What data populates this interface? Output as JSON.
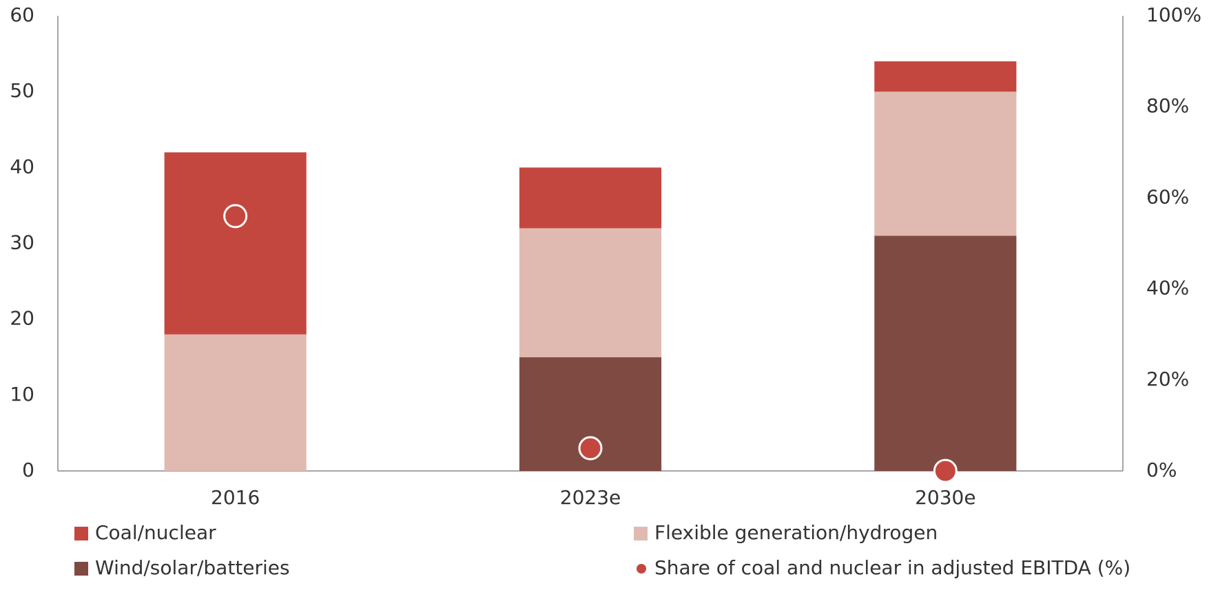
{
  "chart_data": {
    "type": "bar",
    "categories": [
      "2016",
      "2023e",
      "2030e"
    ],
    "series": [
      {
        "name": "Coal/nuclear",
        "color": "#c4473f",
        "values": [
          24,
          8,
          4
        ]
      },
      {
        "name": "Flexible generation/hydrogen",
        "color": "#e0bab1",
        "values": [
          18,
          17,
          19
        ]
      },
      {
        "name": "Wind/solar/batteries",
        "color": "#7f4a42",
        "values": [
          0,
          15,
          31
        ]
      },
      {
        "name": "Share of coal and nuclear in adjusted EBITDA (%)",
        "type": "scatter",
        "axis": "y2",
        "color": "#c4473f",
        "values": [
          56,
          5,
          0
        ]
      }
    ],
    "ylim": [
      0,
      60
    ],
    "yticks": [
      0,
      10,
      20,
      30,
      40,
      50,
      60
    ],
    "y2lim": [
      0,
      100
    ],
    "y2ticks": [
      {
        "value": 0,
        "label": "0%"
      },
      {
        "value": 20,
        "label": "20%"
      },
      {
        "value": 40,
        "label": "40%"
      },
      {
        "value": 60,
        "label": "60%"
      },
      {
        "value": 80,
        "label": "80%"
      },
      {
        "value": 100,
        "label": "100%"
      }
    ],
    "grid": false
  }
}
